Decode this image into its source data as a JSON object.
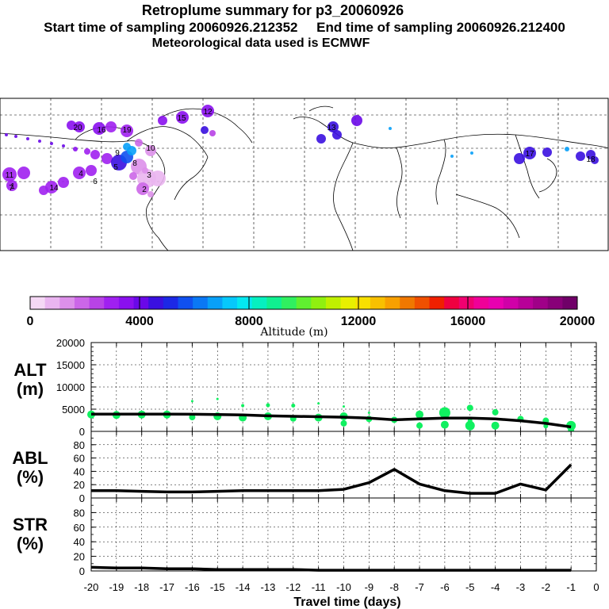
{
  "title": "Retroplume summary for p3_20060926",
  "subtitle_start": "Start time of sampling 20060926.212352",
  "subtitle_end": "End time of sampling 20060926.212400",
  "subtitle_met": "Meteorological data used is ECMWF",
  "colorbar": {
    "label": "Altitude (m)",
    "ticks": [
      "0",
      "4000",
      "8000",
      "12000",
      "16000",
      "20000"
    ],
    "colors": [
      "#f5d8f5",
      "#eab5f0",
      "#dd90ea",
      "#cc66e8",
      "#b843e6",
      "#a020f0",
      "#8a10ee",
      "#6a08e8",
      "#3a10e0",
      "#1c28e6",
      "#1050f0",
      "#0a78f5",
      "#08a0f8",
      "#06c8fb",
      "#04e8f0",
      "#06f0c0",
      "#10f090",
      "#30f060",
      "#60f030",
      "#90f010",
      "#c0f000",
      "#e8f000",
      "#f8e000",
      "#f8c000",
      "#f8a000",
      "#f07800",
      "#f05000",
      "#f02000",
      "#f00040",
      "#f00070",
      "#f00098",
      "#e800b0",
      "#d000a8",
      "#b80098",
      "#a00088",
      "#880078",
      "#700068"
    ]
  },
  "map": {
    "trajectory_labels": [
      "20",
      "16",
      "19",
      "11",
      "1",
      "4",
      "6",
      "2",
      "3",
      "10",
      "15",
      "12",
      "13",
      "5",
      "7",
      "8",
      "9",
      "14",
      "17",
      "18"
    ]
  },
  "chart_data": [
    {
      "type": "line",
      "panel": "ALT",
      "ylabel": "ALT\n(m)",
      "ylabel_line1": "ALT",
      "ylabel_line2": "(m)",
      "ylim": [
        0,
        20000
      ],
      "yticks": [
        "0",
        "5000",
        "10000",
        "15000",
        "20000"
      ],
      "x": [
        -20,
        -19,
        -18,
        -17,
        -16,
        -15,
        -14,
        -13,
        -12,
        -11,
        -10,
        -9,
        -8,
        -7,
        -6,
        -5,
        -4,
        -3,
        -2,
        -1
      ],
      "values": [
        3900,
        3900,
        3900,
        3900,
        3850,
        3800,
        3700,
        3500,
        3400,
        3300,
        3200,
        3000,
        2600,
        2800,
        3000,
        3000,
        2800,
        2400,
        1800,
        1000
      ],
      "scatter": [
        {
          "x": -20,
          "y": 3800,
          "r": 5
        },
        {
          "x": -19,
          "y": 3700,
          "r": 5
        },
        {
          "x": -18,
          "y": 3800,
          "r": 5
        },
        {
          "x": -17,
          "y": 3800,
          "r": 5
        },
        {
          "x": -16,
          "y": 3200,
          "r": 4
        },
        {
          "x": -16,
          "y": 6800,
          "r": 1.5
        },
        {
          "x": -15,
          "y": 3400,
          "r": 5
        },
        {
          "x": -15,
          "y": 7300,
          "r": 1.5
        },
        {
          "x": -14,
          "y": 3100,
          "r": 5
        },
        {
          "x": -14,
          "y": 5800,
          "r": 2
        },
        {
          "x": -13,
          "y": 3400,
          "r": 5
        },
        {
          "x": -13,
          "y": 5900,
          "r": 2.5
        },
        {
          "x": -12,
          "y": 2900,
          "r": 4
        },
        {
          "x": -12,
          "y": 5800,
          "r": 2.5
        },
        {
          "x": -11,
          "y": 3100,
          "r": 5
        },
        {
          "x": -11,
          "y": 6300,
          "r": 1.5
        },
        {
          "x": -10,
          "y": 3400,
          "r": 5
        },
        {
          "x": -10,
          "y": 1800,
          "r": 4
        },
        {
          "x": -10,
          "y": 5600,
          "r": 1.5
        },
        {
          "x": -9,
          "y": 2800,
          "r": 4
        },
        {
          "x": -9,
          "y": 4200,
          "r": 1.5
        },
        {
          "x": -8,
          "y": 2600,
          "r": 4
        },
        {
          "x": -7,
          "y": 3800,
          "r": 5
        },
        {
          "x": -7,
          "y": 1300,
          "r": 4
        },
        {
          "x": -6,
          "y": 4200,
          "r": 7
        },
        {
          "x": -6,
          "y": 1500,
          "r": 5
        },
        {
          "x": -5,
          "y": 5300,
          "r": 4
        },
        {
          "x": -5,
          "y": 1300,
          "r": 6
        },
        {
          "x": -5,
          "y": 2400,
          "r": 3
        },
        {
          "x": -4,
          "y": 4300,
          "r": 4
        },
        {
          "x": -4,
          "y": 1300,
          "r": 5
        },
        {
          "x": -3,
          "y": 2800,
          "r": 4
        },
        {
          "x": -2,
          "y": 2400,
          "r": 4
        },
        {
          "x": -2,
          "y": 1200,
          "r": 3
        },
        {
          "x": -1,
          "y": 1300,
          "r": 6
        },
        {
          "x": -1,
          "y": 400,
          "r": 4
        }
      ]
    },
    {
      "type": "line",
      "panel": "ABL",
      "ylabel_line1": "ABL",
      "ylabel_line2": "(%)",
      "ylim": [
        0,
        100
      ],
      "yticks": [
        "0",
        "20",
        "40",
        "60",
        "80"
      ],
      "x": [
        -20,
        -19,
        -18,
        -17,
        -16,
        -15,
        -14,
        -13,
        -12,
        -11,
        -10,
        -9,
        -8,
        -7,
        -6,
        -5,
        -4,
        -3,
        -2,
        -1
      ],
      "values": [
        11,
        11,
        10,
        9,
        9,
        10,
        11,
        11,
        11,
        11,
        13,
        23,
        43,
        21,
        11,
        7,
        7,
        21,
        12,
        50
      ]
    },
    {
      "type": "line",
      "panel": "STR",
      "ylabel_line1": "STR",
      "ylabel_line2": "(%)",
      "ylim": [
        0,
        100
      ],
      "yticks": [
        "0",
        "20",
        "40",
        "60",
        "80"
      ],
      "x": [
        -20,
        -19,
        -18,
        -17,
        -16,
        -15,
        -14,
        -13,
        -12,
        -11,
        -10,
        -9,
        -8,
        -7,
        -6,
        -5,
        -4,
        -3,
        -2,
        -1
      ],
      "values": [
        5,
        4,
        4,
        3,
        3,
        2,
        2,
        2,
        2,
        1,
        1,
        1,
        1,
        1,
        1,
        1,
        1,
        1,
        1,
        1
      ]
    }
  ],
  "xaxis": {
    "label": "Travel time (days)",
    "ticks": [
      "-20",
      "-19",
      "-18",
      "-17",
      "-16",
      "-15",
      "-14",
      "-13",
      "-12",
      "-11",
      "-10",
      "-9",
      "-8",
      "-7",
      "-6",
      "-5",
      "-4",
      "-3",
      "-2",
      "-1",
      "0"
    ]
  }
}
